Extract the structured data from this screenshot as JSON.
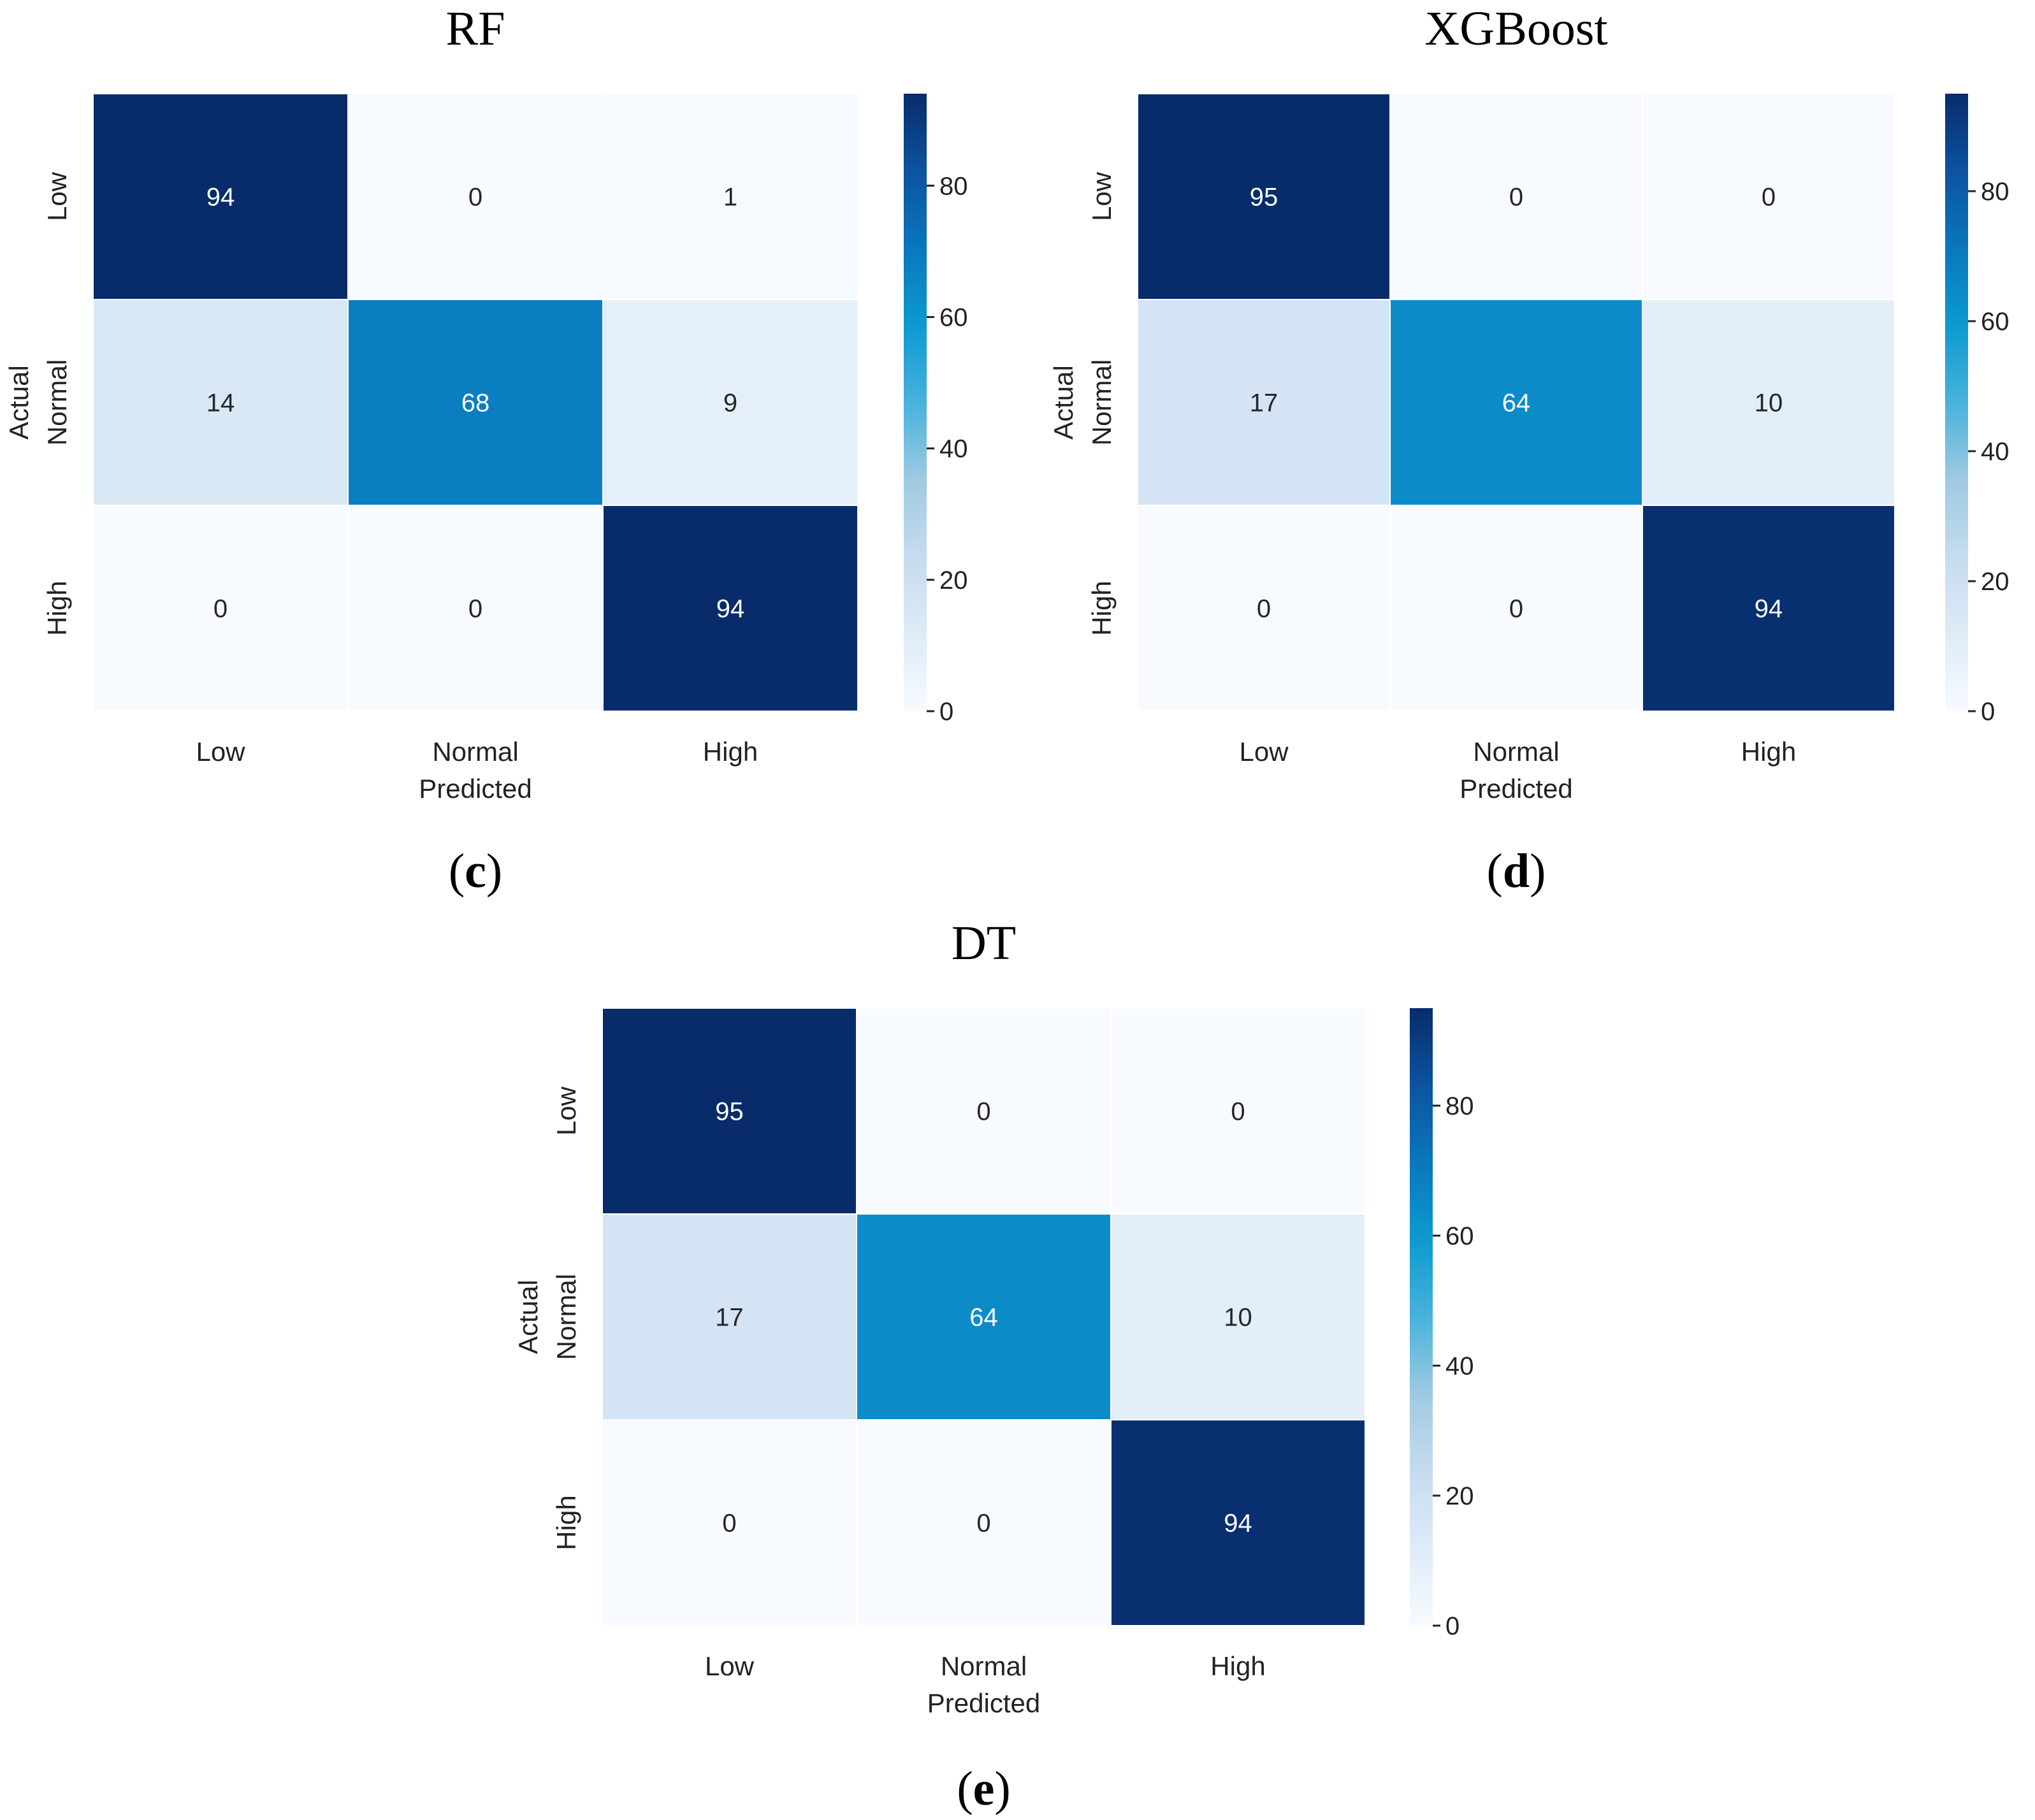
{
  "chart_data": [
    {
      "type": "heatmap",
      "title": "RF",
      "caption": {
        "open": "(",
        "letter": "c",
        "close": ")"
      },
      "xlabel": "Predicted",
      "ylabel": "Actual",
      "x_categories": [
        "Low",
        "Normal",
        "High"
      ],
      "y_categories": [
        "Low",
        "Normal",
        "High"
      ],
      "values": [
        [
          94,
          0,
          1
        ],
        [
          14,
          68,
          9
        ],
        [
          0,
          0,
          94
        ]
      ],
      "colorbar": {
        "min": 0,
        "max": 94,
        "ticks": [
          0,
          20,
          40,
          60,
          80
        ]
      },
      "colormap": "Blues"
    },
    {
      "type": "heatmap",
      "title": "XGBoost",
      "caption": {
        "open": "(",
        "letter": "d",
        "close": ")"
      },
      "xlabel": "Predicted",
      "ylabel": "Actual",
      "x_categories": [
        "Low",
        "Normal",
        "High"
      ],
      "y_categories": [
        "Low",
        "Normal",
        "High"
      ],
      "values": [
        [
          95,
          0,
          0
        ],
        [
          17,
          64,
          10
        ],
        [
          0,
          0,
          94
        ]
      ],
      "colorbar": {
        "min": 0,
        "max": 95,
        "ticks": [
          0,
          20,
          40,
          60,
          80
        ]
      },
      "colormap": "Blues"
    },
    {
      "type": "heatmap",
      "title": "DT",
      "caption": {
        "open": "(",
        "letter": "e",
        "close": ")"
      },
      "xlabel": "Predicted",
      "ylabel": "Actual",
      "x_categories": [
        "Low",
        "Normal",
        "High"
      ],
      "y_categories": [
        "Low",
        "Normal",
        "High"
      ],
      "values": [
        [
          95,
          0,
          0
        ],
        [
          17,
          64,
          10
        ],
        [
          0,
          0,
          94
        ]
      ],
      "colorbar": {
        "min": 0,
        "max": 95,
        "ticks": [
          0,
          20,
          40,
          60,
          80
        ]
      },
      "colormap": "Blues"
    }
  ]
}
